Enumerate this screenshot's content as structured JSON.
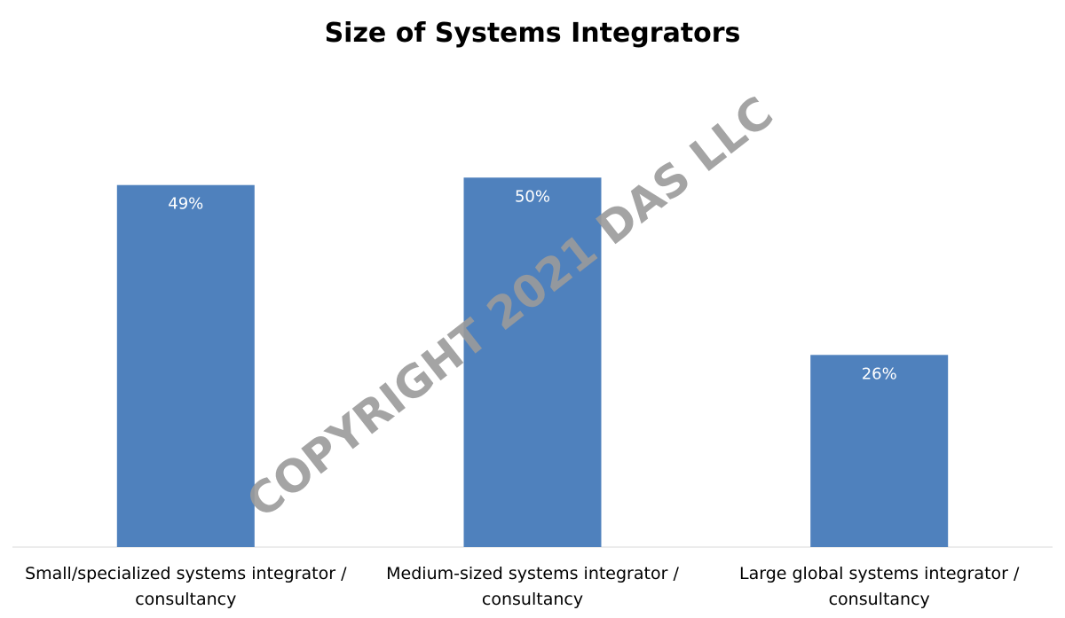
{
  "chart_data": {
    "type": "bar",
    "title": "Size of Systems Integrators",
    "categories": [
      "Small/specialized systems integrator / consultancy",
      "Medium-sized systems integrator / consultancy",
      "Large global systems integrator / consultancy"
    ],
    "category_label_lines": [
      [
        "Small/specialized systems integrator /",
        "consultancy"
      ],
      [
        "Medium-sized systems integrator /",
        "consultancy"
      ],
      [
        "Large global systems integrator /",
        "consultancy"
      ]
    ],
    "values": [
      49,
      50,
      26
    ],
    "data_labels": [
      "49%",
      "50%",
      "26%"
    ],
    "unit": "%",
    "xlabel": "",
    "ylabel": "",
    "ylim": [
      0,
      60
    ],
    "grid": false,
    "legend": false,
    "bar_color": "#4f81bd"
  },
  "watermark": {
    "text": "COPYRIGHT 2021 DAS LLC",
    "color": "#9a9a9a"
  }
}
